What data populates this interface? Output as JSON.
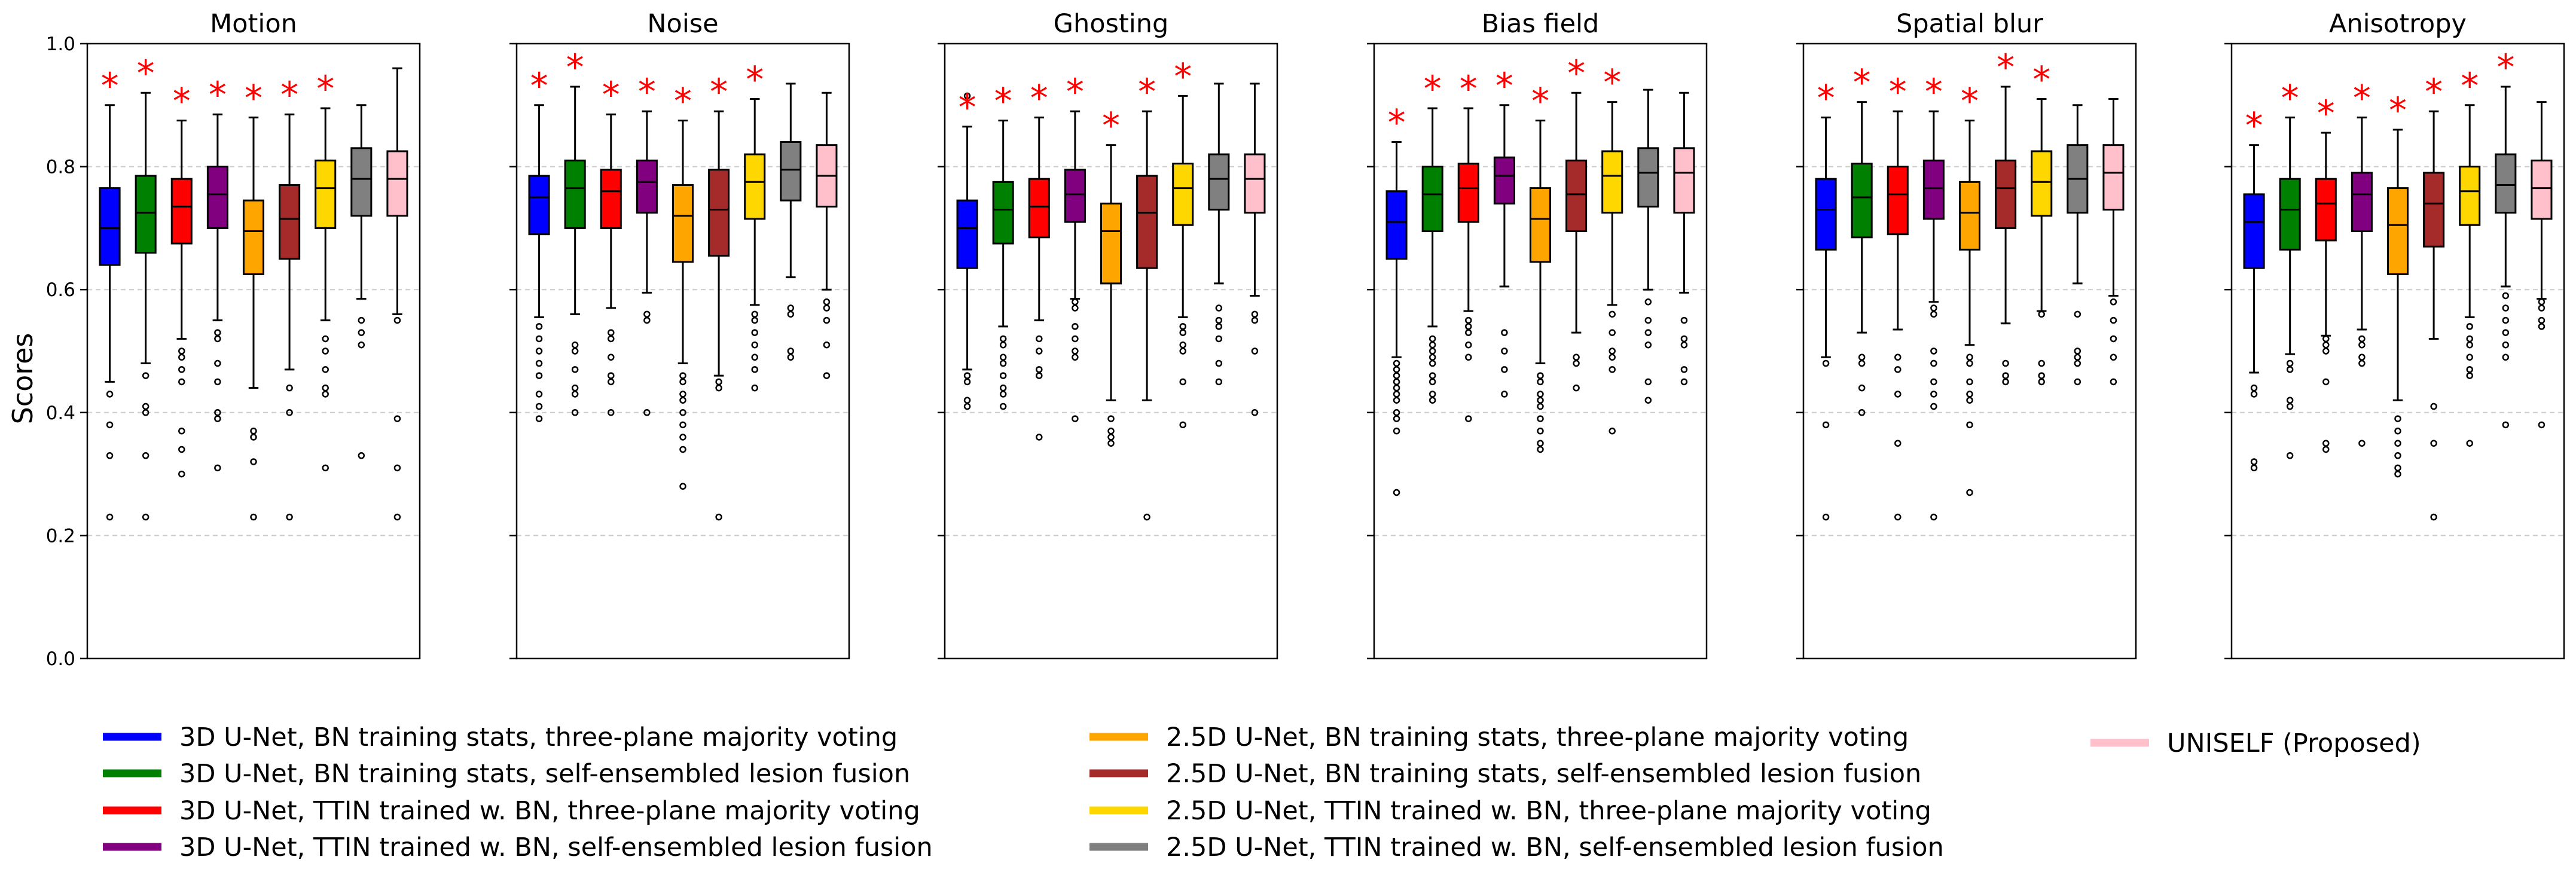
{
  "figure": {
    "ylabel": "Scores",
    "legend": [
      {
        "label": "3D U-Net, BN training stats, three-plane majority voting",
        "color": "#0000ff"
      },
      {
        "label": "3D U-Net, BN training stats, self-ensembled lesion fusion",
        "color": "#008000"
      },
      {
        "label": "3D U-Net, TTIN trained w. BN, three-plane majority voting",
        "color": "#ff0000"
      },
      {
        "label": "3D U-Net, TTIN trained w. BN, self-ensembled lesion fusion",
        "color": "#800080"
      },
      {
        "label": "2.5D U-Net, BN training stats, three-plane majority voting",
        "color": "#ffa500"
      },
      {
        "label": "2.5D U-Net, BN training stats, self-ensembled lesion fusion",
        "color": "#a52a2a"
      },
      {
        "label": "2.5D U-Net, TTIN trained w. BN, three-plane majority voting",
        "color": "#ffd700"
      },
      {
        "label": "2.5D U-Net, TTIN trained w. BN, self-ensembled lesion fusion",
        "color": "#808080"
      },
      {
        "label": "UNISELF (Proposed)",
        "color": "#ffc0cb"
      }
    ]
  },
  "chart_data": [
    {
      "type": "box",
      "title": "Motion",
      "ylim": [
        0,
        1.0
      ],
      "yticks": [
        "0.0",
        "0.2",
        "0.4",
        "0.6",
        "0.8",
        "1.0"
      ],
      "grid": "y-dashed",
      "boxes": [
        {
          "q1": 0.64,
          "med": 0.7,
          "q3": 0.765,
          "lo": 0.45,
          "hi": 0.9,
          "sig": true,
          "out": [
            0.43,
            0.38,
            0.33,
            0.23
          ]
        },
        {
          "q1": 0.66,
          "med": 0.725,
          "q3": 0.785,
          "lo": 0.48,
          "hi": 0.92,
          "sig": true,
          "out": [
            0.46,
            0.41,
            0.4,
            0.33,
            0.23
          ]
        },
        {
          "q1": 0.675,
          "med": 0.735,
          "q3": 0.78,
          "lo": 0.52,
          "hi": 0.875,
          "sig": true,
          "out": [
            0.5,
            0.49,
            0.47,
            0.45,
            0.37,
            0.34,
            0.3
          ]
        },
        {
          "q1": 0.7,
          "med": 0.755,
          "q3": 0.8,
          "lo": 0.55,
          "hi": 0.885,
          "sig": true,
          "out": [
            0.53,
            0.52,
            0.48,
            0.45,
            0.4,
            0.39,
            0.31
          ]
        },
        {
          "q1": 0.625,
          "med": 0.695,
          "q3": 0.745,
          "lo": 0.44,
          "hi": 0.88,
          "sig": true,
          "out": [
            0.37,
            0.36,
            0.32,
            0.23
          ]
        },
        {
          "q1": 0.65,
          "med": 0.715,
          "q3": 0.77,
          "lo": 0.47,
          "hi": 0.885,
          "sig": true,
          "out": [
            0.44,
            0.4,
            0.23
          ]
        },
        {
          "q1": 0.7,
          "med": 0.765,
          "q3": 0.81,
          "lo": 0.55,
          "hi": 0.895,
          "sig": true,
          "out": [
            0.52,
            0.5,
            0.47,
            0.44,
            0.43,
            0.31
          ]
        },
        {
          "q1": 0.72,
          "med": 0.78,
          "q3": 0.83,
          "lo": 0.585,
          "hi": 0.9,
          "sig": false,
          "out": [
            0.55,
            0.53,
            0.51,
            0.33
          ]
        },
        {
          "q1": 0.72,
          "med": 0.78,
          "q3": 0.825,
          "lo": 0.56,
          "hi": 0.96,
          "sig": false,
          "out": [
            0.55,
            0.39,
            0.31,
            0.23
          ]
        }
      ]
    },
    {
      "type": "box",
      "title": "Noise",
      "ylim": [
        0,
        1.0
      ],
      "yticks": [
        "0.0",
        "0.2",
        "0.4",
        "0.6",
        "0.8",
        "1.0"
      ],
      "grid": "y-dashed",
      "boxes": [
        {
          "q1": 0.69,
          "med": 0.75,
          "q3": 0.785,
          "lo": 0.555,
          "hi": 0.9,
          "sig": true,
          "out": [
            0.54,
            0.52,
            0.5,
            0.48,
            0.46,
            0.43,
            0.41,
            0.39
          ]
        },
        {
          "q1": 0.7,
          "med": 0.765,
          "q3": 0.81,
          "lo": 0.56,
          "hi": 0.93,
          "sig": true,
          "out": [
            0.51,
            0.5,
            0.47,
            0.44,
            0.43,
            0.4
          ]
        },
        {
          "q1": 0.7,
          "med": 0.76,
          "q3": 0.795,
          "lo": 0.57,
          "hi": 0.885,
          "sig": true,
          "out": [
            0.53,
            0.52,
            0.49,
            0.46,
            0.45,
            0.4
          ]
        },
        {
          "q1": 0.725,
          "med": 0.775,
          "q3": 0.81,
          "lo": 0.595,
          "hi": 0.89,
          "sig": true,
          "out": [
            0.56,
            0.55,
            0.4
          ]
        },
        {
          "q1": 0.645,
          "med": 0.72,
          "q3": 0.77,
          "lo": 0.48,
          "hi": 0.875,
          "sig": true,
          "out": [
            0.46,
            0.45,
            0.43,
            0.42,
            0.4,
            0.38,
            0.36,
            0.34,
            0.28
          ]
        },
        {
          "q1": 0.655,
          "med": 0.73,
          "q3": 0.795,
          "lo": 0.46,
          "hi": 0.89,
          "sig": true,
          "out": [
            0.45,
            0.44,
            0.23
          ]
        },
        {
          "q1": 0.715,
          "med": 0.775,
          "q3": 0.82,
          "lo": 0.575,
          "hi": 0.91,
          "sig": true,
          "out": [
            0.56,
            0.55,
            0.53,
            0.51,
            0.49,
            0.47,
            0.44
          ]
        },
        {
          "q1": 0.745,
          "med": 0.795,
          "q3": 0.84,
          "lo": 0.62,
          "hi": 0.935,
          "sig": false,
          "out": [
            0.57,
            0.56,
            0.5,
            0.49
          ]
        },
        {
          "q1": 0.735,
          "med": 0.785,
          "q3": 0.835,
          "lo": 0.6,
          "hi": 0.92,
          "sig": false,
          "out": [
            0.58,
            0.57,
            0.55,
            0.51,
            0.46
          ]
        }
      ]
    },
    {
      "type": "box",
      "title": "Ghosting",
      "ylim": [
        0,
        1.0
      ],
      "yticks": [
        "0.0",
        "0.2",
        "0.4",
        "0.6",
        "0.8",
        "1.0"
      ],
      "grid": "y-dashed",
      "boxes": [
        {
          "q1": 0.635,
          "med": 0.7,
          "q3": 0.745,
          "lo": 0.47,
          "hi": 0.865,
          "sig": true,
          "out": [
            0.915,
            0.46,
            0.45,
            0.42,
            0.41
          ]
        },
        {
          "q1": 0.675,
          "med": 0.73,
          "q3": 0.775,
          "lo": 0.54,
          "hi": 0.875,
          "sig": true,
          "out": [
            0.52,
            0.51,
            0.49,
            0.48,
            0.46,
            0.44,
            0.43,
            0.41
          ]
        },
        {
          "q1": 0.685,
          "med": 0.735,
          "q3": 0.78,
          "lo": 0.55,
          "hi": 0.88,
          "sig": true,
          "out": [
            0.52,
            0.5,
            0.47,
            0.46,
            0.36
          ]
        },
        {
          "q1": 0.71,
          "med": 0.755,
          "q3": 0.795,
          "lo": 0.585,
          "hi": 0.89,
          "sig": true,
          "out": [
            0.58,
            0.57,
            0.54,
            0.52,
            0.5,
            0.49,
            0.39
          ]
        },
        {
          "q1": 0.61,
          "med": 0.695,
          "q3": 0.74,
          "lo": 0.42,
          "hi": 0.835,
          "sig": true,
          "out": [
            0.39,
            0.37,
            0.36,
            0.35
          ]
        },
        {
          "q1": 0.635,
          "med": 0.725,
          "q3": 0.785,
          "lo": 0.42,
          "hi": 0.89,
          "sig": true,
          "out": [
            0.23
          ]
        },
        {
          "q1": 0.705,
          "med": 0.765,
          "q3": 0.805,
          "lo": 0.555,
          "hi": 0.915,
          "sig": true,
          "out": [
            0.54,
            0.53,
            0.51,
            0.5,
            0.45,
            0.38
          ]
        },
        {
          "q1": 0.73,
          "med": 0.78,
          "q3": 0.82,
          "lo": 0.61,
          "hi": 0.935,
          "sig": false,
          "out": [
            0.57,
            0.55,
            0.54,
            0.52,
            0.48,
            0.45
          ]
        },
        {
          "q1": 0.725,
          "med": 0.78,
          "q3": 0.82,
          "lo": 0.59,
          "hi": 0.935,
          "sig": false,
          "out": [
            0.56,
            0.55,
            0.5,
            0.4
          ]
        }
      ]
    },
    {
      "type": "box",
      "title": "Bias field",
      "ylim": [
        0,
        1.0
      ],
      "yticks": [
        "0.0",
        "0.2",
        "0.4",
        "0.6",
        "0.8",
        "1.0"
      ],
      "grid": "y-dashed",
      "boxes": [
        {
          "q1": 0.65,
          "med": 0.71,
          "q3": 0.76,
          "lo": 0.49,
          "hi": 0.84,
          "sig": true,
          "out": [
            0.48,
            0.47,
            0.46,
            0.45,
            0.44,
            0.43,
            0.42,
            0.4,
            0.39,
            0.37,
            0.27
          ]
        },
        {
          "q1": 0.695,
          "med": 0.755,
          "q3": 0.8,
          "lo": 0.54,
          "hi": 0.895,
          "sig": true,
          "out": [
            0.52,
            0.51,
            0.5,
            0.49,
            0.48,
            0.46,
            0.45,
            0.43,
            0.42
          ]
        },
        {
          "q1": 0.71,
          "med": 0.765,
          "q3": 0.805,
          "lo": 0.565,
          "hi": 0.895,
          "sig": true,
          "out": [
            0.55,
            0.54,
            0.53,
            0.51,
            0.49,
            0.39
          ]
        },
        {
          "q1": 0.74,
          "med": 0.785,
          "q3": 0.815,
          "lo": 0.605,
          "hi": 0.9,
          "sig": true,
          "out": [
            0.53,
            0.5,
            0.47,
            0.43
          ]
        },
        {
          "q1": 0.645,
          "med": 0.715,
          "q3": 0.765,
          "lo": 0.48,
          "hi": 0.875,
          "sig": true,
          "out": [
            0.46,
            0.45,
            0.43,
            0.42,
            0.41,
            0.39,
            0.37,
            0.35,
            0.34
          ]
        },
        {
          "q1": 0.695,
          "med": 0.755,
          "q3": 0.81,
          "lo": 0.53,
          "hi": 0.92,
          "sig": true,
          "out": [
            0.49,
            0.48,
            0.44
          ]
        },
        {
          "q1": 0.725,
          "med": 0.785,
          "q3": 0.825,
          "lo": 0.575,
          "hi": 0.905,
          "sig": true,
          "out": [
            0.56,
            0.53,
            0.5,
            0.49,
            0.47,
            0.37
          ]
        },
        {
          "q1": 0.735,
          "med": 0.79,
          "q3": 0.83,
          "lo": 0.6,
          "hi": 0.925,
          "sig": false,
          "out": [
            0.58,
            0.55,
            0.53,
            0.51,
            0.45,
            0.42
          ]
        },
        {
          "q1": 0.725,
          "med": 0.79,
          "q3": 0.83,
          "lo": 0.595,
          "hi": 0.92,
          "sig": false,
          "out": [
            0.55,
            0.52,
            0.51,
            0.47,
            0.45
          ]
        }
      ]
    },
    {
      "type": "box",
      "title": "Spatial blur",
      "ylim": [
        0,
        1.0
      ],
      "yticks": [
        "0.0",
        "0.2",
        "0.4",
        "0.6",
        "0.8",
        "1.0"
      ],
      "grid": "y-dashed",
      "boxes": [
        {
          "q1": 0.665,
          "med": 0.73,
          "q3": 0.78,
          "lo": 0.49,
          "hi": 0.88,
          "sig": true,
          "out": [
            0.48,
            0.38,
            0.23
          ]
        },
        {
          "q1": 0.685,
          "med": 0.75,
          "q3": 0.805,
          "lo": 0.53,
          "hi": 0.905,
          "sig": true,
          "out": [
            0.49,
            0.48,
            0.44,
            0.4
          ]
        },
        {
          "q1": 0.69,
          "med": 0.755,
          "q3": 0.8,
          "lo": 0.535,
          "hi": 0.89,
          "sig": true,
          "out": [
            0.49,
            0.47,
            0.43,
            0.35,
            0.23
          ]
        },
        {
          "q1": 0.715,
          "med": 0.765,
          "q3": 0.81,
          "lo": 0.58,
          "hi": 0.89,
          "sig": true,
          "out": [
            0.57,
            0.56,
            0.5,
            0.48,
            0.45,
            0.43,
            0.41,
            0.23
          ]
        },
        {
          "q1": 0.665,
          "med": 0.725,
          "q3": 0.775,
          "lo": 0.51,
          "hi": 0.875,
          "sig": true,
          "out": [
            0.49,
            0.48,
            0.45,
            0.43,
            0.42,
            0.38,
            0.27
          ]
        },
        {
          "q1": 0.7,
          "med": 0.765,
          "q3": 0.81,
          "lo": 0.545,
          "hi": 0.93,
          "sig": true,
          "out": [
            0.48,
            0.46,
            0.45
          ]
        },
        {
          "q1": 0.72,
          "med": 0.775,
          "q3": 0.825,
          "lo": 0.565,
          "hi": 0.91,
          "sig": true,
          "out": [
            0.56,
            0.48,
            0.46,
            0.45
          ]
        },
        {
          "q1": 0.725,
          "med": 0.78,
          "q3": 0.835,
          "lo": 0.61,
          "hi": 0.9,
          "sig": false,
          "out": [
            0.56,
            0.5,
            0.49,
            0.48,
            0.45
          ]
        },
        {
          "q1": 0.73,
          "med": 0.79,
          "q3": 0.835,
          "lo": 0.59,
          "hi": 0.91,
          "sig": false,
          "out": [
            0.58,
            0.55,
            0.52,
            0.49,
            0.45
          ]
        }
      ]
    },
    {
      "type": "box",
      "title": "Anisotropy",
      "ylim": [
        0,
        1.0
      ],
      "yticks": [
        "0.0",
        "0.2",
        "0.4",
        "0.6",
        "0.8",
        "1.0"
      ],
      "grid": "y-dashed",
      "boxes": [
        {
          "q1": 0.635,
          "med": 0.71,
          "q3": 0.755,
          "lo": 0.465,
          "hi": 0.835,
          "sig": true,
          "out": [
            0.44,
            0.43,
            0.32,
            0.31
          ]
        },
        {
          "q1": 0.665,
          "med": 0.73,
          "q3": 0.78,
          "lo": 0.495,
          "hi": 0.88,
          "sig": true,
          "out": [
            0.48,
            0.47,
            0.42,
            0.41,
            0.33
          ]
        },
        {
          "q1": 0.68,
          "med": 0.74,
          "q3": 0.78,
          "lo": 0.525,
          "hi": 0.855,
          "sig": true,
          "out": [
            0.52,
            0.51,
            0.5,
            0.45,
            0.35,
            0.34
          ]
        },
        {
          "q1": 0.695,
          "med": 0.755,
          "q3": 0.79,
          "lo": 0.535,
          "hi": 0.88,
          "sig": true,
          "out": [
            0.52,
            0.51,
            0.49,
            0.48,
            0.35
          ]
        },
        {
          "q1": 0.625,
          "med": 0.705,
          "q3": 0.765,
          "lo": 0.42,
          "hi": 0.86,
          "sig": true,
          "out": [
            0.39,
            0.37,
            0.35,
            0.33,
            0.31,
            0.3
          ]
        },
        {
          "q1": 0.67,
          "med": 0.74,
          "q3": 0.79,
          "lo": 0.52,
          "hi": 0.89,
          "sig": true,
          "out": [
            0.41,
            0.35,
            0.23
          ]
        },
        {
          "q1": 0.705,
          "med": 0.76,
          "q3": 0.8,
          "lo": 0.555,
          "hi": 0.9,
          "sig": true,
          "out": [
            0.54,
            0.52,
            0.51,
            0.49,
            0.47,
            0.46,
            0.35
          ]
        },
        {
          "q1": 0.725,
          "med": 0.77,
          "q3": 0.82,
          "lo": 0.605,
          "hi": 0.93,
          "sig": true,
          "out": [
            0.59,
            0.57,
            0.55,
            0.53,
            0.51,
            0.49,
            0.38
          ]
        },
        {
          "q1": 0.715,
          "med": 0.765,
          "q3": 0.81,
          "lo": 0.585,
          "hi": 0.905,
          "sig": false,
          "out": [
            0.58,
            0.57,
            0.55,
            0.54,
            0.38
          ]
        }
      ]
    }
  ]
}
